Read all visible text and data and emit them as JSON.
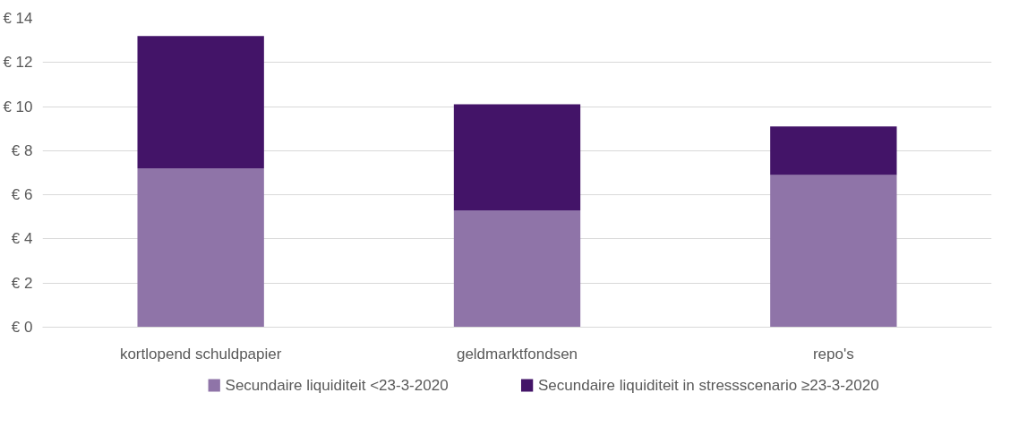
{
  "chart_data": {
    "type": "bar",
    "stacked": true,
    "categories": [
      "kortlopend schuldpapier",
      "geldmarktfondsen",
      "repo's"
    ],
    "series": [
      {
        "name": "Secundaire liquiditeit <23-3-2020",
        "color": "#8f74a8",
        "values": [
          7.2,
          5.3,
          6.9
        ]
      },
      {
        "name": "Secundaire liquiditeit in stressscenario ≥23-3-2020",
        "color": "#431468",
        "values": [
          6.0,
          4.8,
          2.2
        ]
      }
    ],
    "ylim": [
      0,
      14
    ],
    "yticks": [
      {
        "value": 0,
        "label": "€ 0"
      },
      {
        "value": 2,
        "label": "€ 2"
      },
      {
        "value": 4,
        "label": "€ 4"
      },
      {
        "value": 6,
        "label": "€ 6"
      },
      {
        "value": 8,
        "label": "€ 8"
      },
      {
        "value": 10,
        "label": "€ 10"
      },
      {
        "value": 12,
        "label": "€ 12"
      },
      {
        "value": 14,
        "label": "€ 14"
      }
    ],
    "grid": "y",
    "legend": "bottom"
  }
}
